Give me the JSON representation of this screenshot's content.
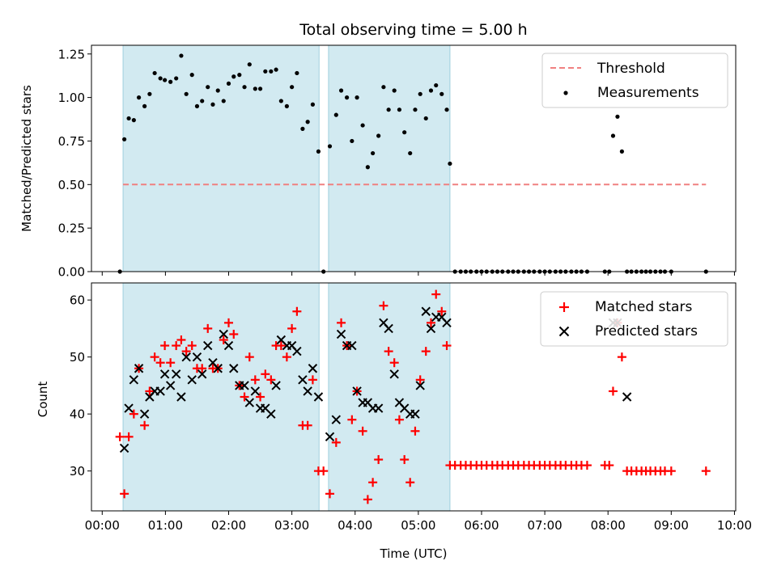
{
  "chart_data": [
    {
      "type": "scatter",
      "title": "Total observing time = 5.00 h",
      "ylabel": "Matched/Predicted stars",
      "xlabel": "",
      "ylim": [
        0,
        1.3
      ],
      "yticks": [
        0,
        0.25,
        0.5,
        0.75,
        1.0,
        1.25
      ],
      "ytick_labels": [
        "0.00",
        "0.25",
        "0.50",
        "0.75",
        "1.00",
        "1.25"
      ],
      "legend_position": "top-right",
      "legend": [
        "Threshold",
        "Measurements"
      ],
      "threshold": {
        "name": "Threshold",
        "value": 0.5,
        "x_start": 0.33,
        "x_end": 9.55,
        "color": "#f08080"
      },
      "shaded_intervals": [
        [
          0.33,
          3.43
        ],
        [
          3.58,
          5.5
        ]
      ],
      "shade_color": "#add8e6",
      "measurements": {
        "name": "Measurements",
        "color": "#000000",
        "x": [
          0.28,
          0.35,
          0.42,
          0.5,
          0.58,
          0.67,
          0.75,
          0.83,
          0.92,
          0.99,
          1.08,
          1.17,
          1.25,
          1.33,
          1.42,
          1.5,
          1.58,
          1.67,
          1.75,
          1.83,
          1.92,
          2.0,
          2.08,
          2.17,
          2.25,
          2.33,
          2.42,
          2.5,
          2.58,
          2.67,
          2.75,
          2.83,
          2.92,
          3.0,
          3.08,
          3.17,
          3.25,
          3.33,
          3.42,
          3.5,
          3.6,
          3.7,
          3.78,
          3.87,
          3.95,
          4.03,
          4.12,
          4.2,
          4.28,
          4.37,
          4.45,
          4.53,
          4.62,
          4.7,
          4.78,
          4.87,
          4.95,
          5.03,
          5.12,
          5.2,
          5.28,
          5.37,
          5.45,
          5.5,
          5.58,
          5.67,
          5.75,
          5.83,
          5.92,
          6.0,
          6.08,
          6.17,
          6.25,
          6.33,
          6.42,
          6.5,
          6.58,
          6.67,
          6.75,
          6.83,
          6.92,
          7.0,
          7.08,
          7.17,
          7.25,
          7.33,
          7.42,
          7.5,
          7.58,
          7.67,
          7.95,
          8.02,
          8.08,
          8.15,
          8.22,
          8.3,
          8.37,
          8.45,
          8.53,
          8.6,
          8.67,
          8.75,
          8.83,
          8.9,
          9.0,
          9.55
        ],
        "y": [
          0.0,
          0.76,
          0.88,
          0.87,
          1.0,
          0.95,
          1.02,
          1.14,
          1.11,
          1.1,
          1.09,
          1.11,
          1.24,
          1.02,
          1.13,
          0.95,
          0.98,
          1.06,
          0.96,
          1.04,
          0.98,
          1.08,
          1.12,
          1.13,
          1.06,
          1.19,
          1.05,
          1.05,
          1.15,
          1.15,
          1.16,
          0.98,
          0.95,
          1.06,
          1.14,
          0.82,
          0.86,
          0.96,
          0.69,
          0.0,
          0.72,
          0.9,
          1.04,
          1.0,
          0.75,
          1.0,
          0.84,
          0.6,
          0.68,
          0.78,
          1.06,
          0.93,
          1.04,
          0.93,
          0.8,
          0.68,
          0.93,
          1.02,
          0.88,
          1.04,
          1.07,
          1.02,
          0.93,
          0.62,
          0.0,
          0.0,
          0.0,
          0.0,
          0.0,
          0.0,
          0.0,
          0.0,
          0.0,
          0.0,
          0.0,
          0.0,
          0.0,
          0.0,
          0.0,
          0.0,
          0.0,
          0.0,
          0.0,
          0.0,
          0.0,
          0.0,
          0.0,
          0.0,
          0.0,
          0.0,
          0.0,
          0.0,
          0.78,
          0.89,
          0.69,
          0.0,
          0.0,
          0.0,
          0.0,
          0.0,
          0.0,
          0.0,
          0.0,
          0.0,
          0.0,
          0.0
        ]
      }
    },
    {
      "type": "scatter",
      "title": "",
      "ylabel": "Count",
      "xlabel": "Time (UTC)",
      "ylim": [
        23,
        63
      ],
      "yticks": [
        30,
        40,
        50,
        60
      ],
      "ytick_labels": [
        "30",
        "40",
        "50",
        "60"
      ],
      "xlim": [
        -0.17,
        10.02
      ],
      "xticks": [
        0,
        1,
        2,
        3,
        4,
        5,
        6,
        7,
        8,
        9,
        10
      ],
      "xtick_labels": [
        "00:00",
        "01:00",
        "02:00",
        "03:00",
        "04:00",
        "05:00",
        "06:00",
        "07:00",
        "08:00",
        "09:00",
        "10:00"
      ],
      "legend_position": "top-right",
      "legend": [
        "Matched stars",
        "Predicted stars"
      ],
      "shaded_intervals": [
        [
          0.33,
          3.43
        ],
        [
          3.58,
          5.5
        ]
      ],
      "shade_color": "#add8e6",
      "series": [
        {
          "name": "Matched stars",
          "marker": "plus",
          "color": "#ff0000",
          "x": [
            0.28,
            0.35,
            0.42,
            0.5,
            0.58,
            0.67,
            0.75,
            0.83,
            0.92,
            0.99,
            1.08,
            1.17,
            1.25,
            1.33,
            1.42,
            1.5,
            1.58,
            1.67,
            1.75,
            1.83,
            1.92,
            2.0,
            2.08,
            2.17,
            2.25,
            2.33,
            2.42,
            2.5,
            2.58,
            2.67,
            2.75,
            2.83,
            2.92,
            3.0,
            3.08,
            3.17,
            3.25,
            3.33,
            3.42,
            3.5,
            3.6,
            3.7,
            3.78,
            3.87,
            3.95,
            4.03,
            4.12,
            4.2,
            4.28,
            4.37,
            4.45,
            4.53,
            4.62,
            4.7,
            4.78,
            4.87,
            4.95,
            5.03,
            5.12,
            5.2,
            5.28,
            5.37,
            5.45,
            5.5,
            5.58,
            5.67,
            5.75,
            5.83,
            5.92,
            6.0,
            6.08,
            6.17,
            6.25,
            6.33,
            6.42,
            6.5,
            6.58,
            6.67,
            6.75,
            6.83,
            6.92,
            7.0,
            7.08,
            7.17,
            7.25,
            7.33,
            7.42,
            7.5,
            7.58,
            7.67,
            7.95,
            8.02,
            8.08,
            8.15,
            8.22,
            8.3,
            8.37,
            8.45,
            8.53,
            8.6,
            8.67,
            8.75,
            8.83,
            8.9,
            9.0,
            9.55
          ],
          "y": [
            36,
            26,
            36,
            40,
            48,
            38,
            44,
            50,
            49,
            52,
            49,
            52,
            53,
            51,
            52,
            48,
            48,
            55,
            48,
            48,
            53,
            56,
            54,
            45,
            43,
            50,
            46,
            43,
            47,
            46,
            52,
            52,
            50,
            55,
            58,
            38,
            38,
            46,
            30,
            30,
            26,
            35,
            56,
            52,
            39,
            44,
            37,
            25,
            28,
            32,
            59,
            51,
            49,
            39,
            32,
            28,
            37,
            46,
            51,
            56,
            61,
            58,
            52,
            31,
            31,
            31,
            31,
            31,
            31,
            31,
            31,
            31,
            31,
            31,
            31,
            31,
            31,
            31,
            31,
            31,
            31,
            31,
            31,
            31,
            31,
            31,
            31,
            31,
            31,
            31,
            31,
            31,
            44,
            56,
            50,
            30,
            30,
            30,
            30,
            30,
            30,
            30,
            30,
            30,
            30,
            30
          ]
        },
        {
          "name": "Predicted stars",
          "marker": "x",
          "color": "#000000",
          "x": [
            0.35,
            0.42,
            0.5,
            0.58,
            0.67,
            0.75,
            0.83,
            0.92,
            0.99,
            1.08,
            1.17,
            1.25,
            1.33,
            1.42,
            1.5,
            1.58,
            1.67,
            1.75,
            1.83,
            1.92,
            2.0,
            2.08,
            2.17,
            2.25,
            2.33,
            2.42,
            2.5,
            2.58,
            2.67,
            2.75,
            2.83,
            2.92,
            3.0,
            3.08,
            3.17,
            3.25,
            3.33,
            3.42,
            3.6,
            3.7,
            3.78,
            3.87,
            3.95,
            4.03,
            4.12,
            4.2,
            4.28,
            4.37,
            4.45,
            4.53,
            4.62,
            4.7,
            4.78,
            4.87,
            4.95,
            5.03,
            5.12,
            5.2,
            5.28,
            5.37,
            5.45,
            8.08,
            8.15,
            8.3
          ],
          "y": [
            34,
            41,
            46,
            48,
            40,
            43,
            44,
            44,
            47,
            45,
            47,
            43,
            50,
            46,
            50,
            47,
            52,
            49,
            48,
            54,
            52,
            48,
            45,
            45,
            42,
            44,
            41,
            41,
            40,
            45,
            53,
            52,
            52,
            51,
            46,
            44,
            48,
            43,
            36,
            39,
            54,
            52,
            52,
            44,
            42,
            42,
            41,
            41,
            56,
            55,
            47,
            42,
            41,
            40,
            40,
            45,
            58,
            55,
            57,
            57,
            56,
            56,
            56,
            43
          ]
        }
      ]
    }
  ]
}
